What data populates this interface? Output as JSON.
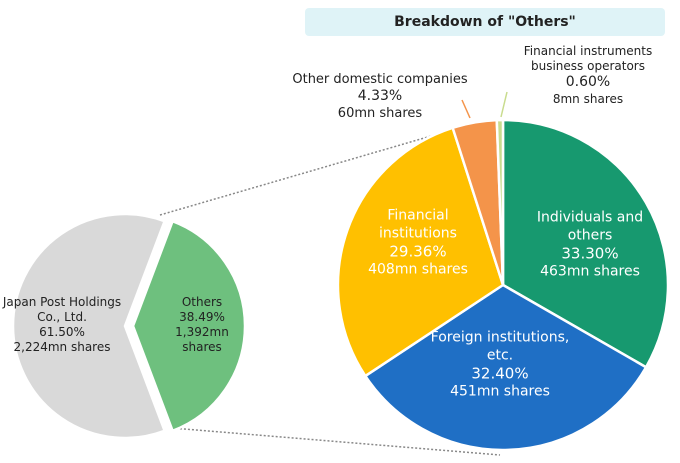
{
  "chart_data": [
    {
      "type": "pie",
      "categories": [
        "Japan Post Holdings Co., Ltd.",
        "Others"
      ],
      "values": [
        61.5,
        38.49
      ],
      "value_labels": [
        "61.50%",
        "38.49%"
      ],
      "shares": {
        "values": [
          2224,
          1392
        ],
        "value_labels": [
          "2,224mn shares",
          "1,392mn shares"
        ]
      },
      "colors": [
        "#d9d9d9",
        "#6ec07e"
      ]
    },
    {
      "type": "pie",
      "title": "Breakdown of \"Others\"",
      "categories": [
        "Individuals and others",
        "Foreign institutions, etc.",
        "Financial institutions",
        "Other domestic companies",
        "Financial instruments business operators"
      ],
      "values": [
        33.3,
        32.4,
        29.36,
        4.33,
        0.6
      ],
      "value_labels": [
        "33.30%",
        "32.40%",
        "29.36%",
        "4.33%",
        "0.60%"
      ],
      "shares": {
        "values": [
          463,
          451,
          408,
          60,
          8
        ],
        "value_labels": [
          "463mn shares",
          "451mn shares",
          "408mn shares",
          "60mn shares",
          "8mn shares"
        ]
      },
      "colors": [
        "#17996f",
        "#1f6fc5",
        "#ffc000",
        "#f4944a",
        "#c9dc8e"
      ]
    }
  ]
}
